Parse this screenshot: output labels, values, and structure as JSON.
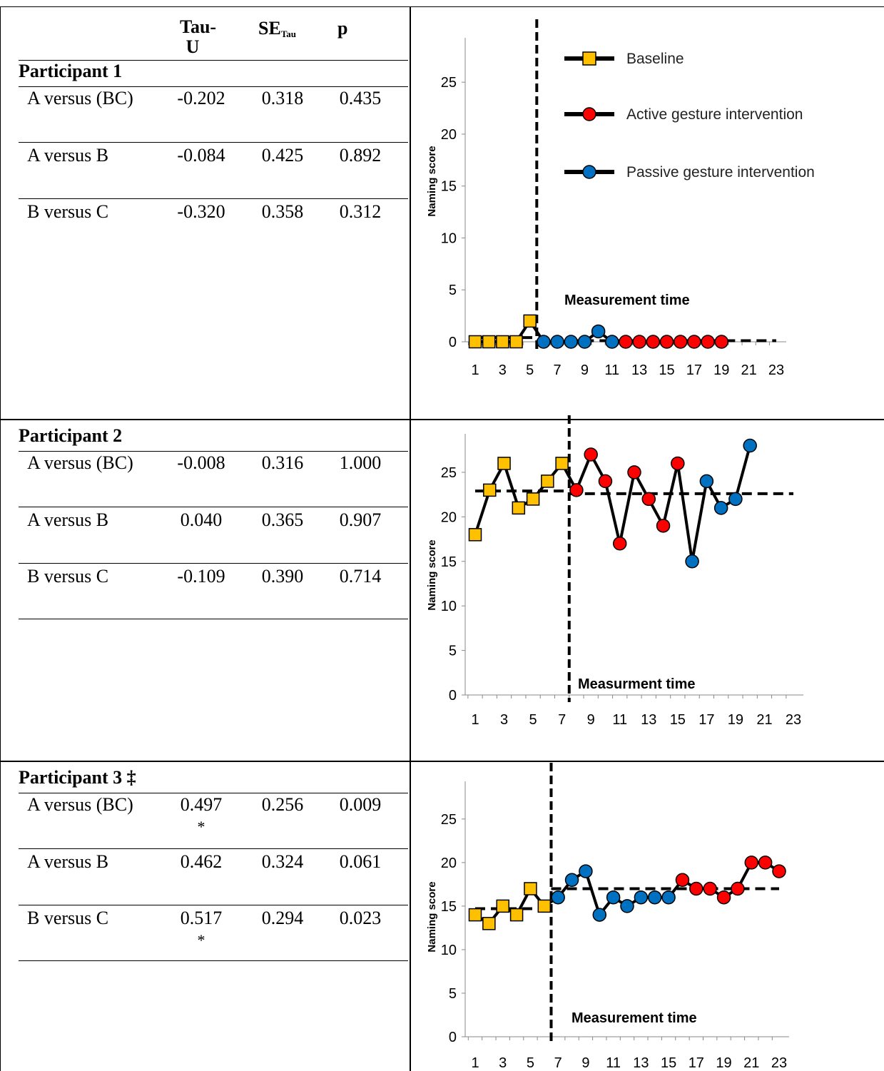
{
  "table": {
    "headers": [
      "",
      "Tau-U",
      "SE",
      "p"
    ],
    "se_sub": "Tau",
    "participants": [
      {
        "label": "Participant 1",
        "rows": [
          {
            "comparison": "A versus (BC)",
            "tau": "-0.202",
            "se": "0.318",
            "p": "0.435",
            "sig": ""
          },
          {
            "comparison": "A versus B",
            "tau": "-0.084",
            "se": "0.425",
            "p": "0.892",
            "sig": ""
          },
          {
            "comparison": "B versus C",
            "tau": "-0.320",
            "se": "0.358",
            "p": "0.312",
            "sig": ""
          }
        ]
      },
      {
        "label": "Participant 2",
        "rows": [
          {
            "comparison": "A versus (BC)",
            "tau": "-0.008",
            "se": "0.316",
            "p": "1.000",
            "sig": ""
          },
          {
            "comparison": "A versus B",
            "tau": "0.040",
            "se": "0.365",
            "p": "0.907",
            "sig": ""
          },
          {
            "comparison": "B versus C",
            "tau": "-0.109",
            "se": "0.390",
            "p": "0.714",
            "sig": ""
          }
        ]
      },
      {
        "label": "Participant 3 ‡",
        "rows": [
          {
            "comparison": "A versus (BC)",
            "tau": "0.497",
            "se": "0.256",
            "p": "0.009",
            "sig": "*"
          },
          {
            "comparison": "A versus B",
            "tau": "0.462",
            "se": "0.324",
            "p": "0.061",
            "sig": ""
          },
          {
            "comparison": "B versus C",
            "tau": "0.517",
            "se": "0.294",
            "p": "0.023",
            "sig": "*"
          }
        ]
      }
    ]
  },
  "colors": {
    "baseline": "#FFC000",
    "active": "#FF0000",
    "passive": "#0070C0",
    "line": "#000000"
  },
  "chart_data": [
    {
      "type": "line",
      "ylabel": "Naming score",
      "xlabel": "Measurement time",
      "ylim": [
        0,
        29
      ],
      "yticks": [
        0,
        5,
        10,
        15,
        20,
        25
      ],
      "xlim": [
        1,
        23
      ],
      "xticks": [
        1,
        3,
        5,
        7,
        9,
        11,
        13,
        15,
        17,
        19,
        21,
        23
      ],
      "phase_change_x": 5.5,
      "legend": [
        "Baseline",
        "Active gesture intervention",
        "Passive gesture intervention"
      ],
      "points": [
        {
          "x": 1,
          "y": 0,
          "phase": "baseline"
        },
        {
          "x": 2,
          "y": 0,
          "phase": "baseline"
        },
        {
          "x": 3,
          "y": 0,
          "phase": "baseline"
        },
        {
          "x": 4,
          "y": 0,
          "phase": "baseline"
        },
        {
          "x": 5,
          "y": 2,
          "phase": "baseline"
        },
        {
          "x": 6,
          "y": 0,
          "phase": "passive"
        },
        {
          "x": 7,
          "y": 0,
          "phase": "passive"
        },
        {
          "x": 8,
          "y": 0,
          "phase": "passive"
        },
        {
          "x": 9,
          "y": 0,
          "phase": "passive"
        },
        {
          "x": 10,
          "y": 1,
          "phase": "passive"
        },
        {
          "x": 11,
          "y": 0,
          "phase": "passive"
        },
        {
          "x": 12,
          "y": 0,
          "phase": "active"
        },
        {
          "x": 13,
          "y": 0,
          "phase": "active"
        },
        {
          "x": 14,
          "y": 0,
          "phase": "active"
        },
        {
          "x": 15,
          "y": 0,
          "phase": "active"
        },
        {
          "x": 16,
          "y": 0,
          "phase": "active"
        },
        {
          "x": 17,
          "y": 0,
          "phase": "active"
        },
        {
          "x": 18,
          "y": 0,
          "phase": "active"
        },
        {
          "x": 19,
          "y": 0,
          "phase": "active"
        }
      ],
      "mean_lines": [
        {
          "x_start": 1,
          "x_end": 5.5,
          "y": 0.4
        },
        {
          "x_start": 5.5,
          "x_end": 23,
          "y": 0.1
        }
      ]
    },
    {
      "type": "line",
      "ylabel": "Naming score",
      "xlabel": "Measurment time",
      "ylim": [
        0,
        29
      ],
      "yticks": [
        0,
        5,
        10,
        15,
        20,
        25
      ],
      "xlim": [
        1,
        23
      ],
      "xticks": [
        1,
        3,
        5,
        7,
        9,
        11,
        13,
        15,
        17,
        19,
        21,
        23
      ],
      "phase_change_x": 7.5,
      "legend": [],
      "points": [
        {
          "x": 1,
          "y": 18,
          "phase": "baseline"
        },
        {
          "x": 2,
          "y": 23,
          "phase": "baseline"
        },
        {
          "x": 3,
          "y": 26,
          "phase": "baseline"
        },
        {
          "x": 4,
          "y": 21,
          "phase": "baseline"
        },
        {
          "x": 5,
          "y": 22,
          "phase": "baseline"
        },
        {
          "x": 6,
          "y": 24,
          "phase": "baseline"
        },
        {
          "x": 7,
          "y": 26,
          "phase": "baseline"
        },
        {
          "x": 8,
          "y": 23,
          "phase": "active"
        },
        {
          "x": 9,
          "y": 27,
          "phase": "active"
        },
        {
          "x": 10,
          "y": 24,
          "phase": "active"
        },
        {
          "x": 11,
          "y": 17,
          "phase": "active"
        },
        {
          "x": 12,
          "y": 25,
          "phase": "active"
        },
        {
          "x": 13,
          "y": 22,
          "phase": "active"
        },
        {
          "x": 14,
          "y": 19,
          "phase": "active"
        },
        {
          "x": 15,
          "y": 26,
          "phase": "active"
        },
        {
          "x": 16,
          "y": 15,
          "phase": "passive"
        },
        {
          "x": 17,
          "y": 24,
          "phase": "passive"
        },
        {
          "x": 18,
          "y": 21,
          "phase": "passive"
        },
        {
          "x": 19,
          "y": 22,
          "phase": "passive"
        },
        {
          "x": 20,
          "y": 28,
          "phase": "passive"
        }
      ],
      "mean_lines": [
        {
          "x_start": 1,
          "x_end": 7.5,
          "y": 22.9
        },
        {
          "x_start": 7.5,
          "x_end": 23,
          "y": 22.6
        }
      ]
    },
    {
      "type": "line",
      "ylabel": "Naming score",
      "xlabel": "Measurement time",
      "ylim": [
        0,
        29
      ],
      "yticks": [
        0,
        5,
        10,
        15,
        20,
        25
      ],
      "xlim": [
        1,
        23
      ],
      "xticks": [
        1,
        3,
        5,
        7,
        9,
        11,
        13,
        15,
        17,
        19,
        21,
        23
      ],
      "phase_change_x": 6.5,
      "legend": [],
      "points": [
        {
          "x": 1,
          "y": 14,
          "phase": "baseline"
        },
        {
          "x": 2,
          "y": 13,
          "phase": "baseline"
        },
        {
          "x": 3,
          "y": 15,
          "phase": "baseline"
        },
        {
          "x": 4,
          "y": 14,
          "phase": "baseline"
        },
        {
          "x": 5,
          "y": 17,
          "phase": "baseline"
        },
        {
          "x": 6,
          "y": 15,
          "phase": "baseline"
        },
        {
          "x": 7,
          "y": 16,
          "phase": "passive"
        },
        {
          "x": 8,
          "y": 18,
          "phase": "passive"
        },
        {
          "x": 9,
          "y": 19,
          "phase": "passive"
        },
        {
          "x": 10,
          "y": 14,
          "phase": "passive"
        },
        {
          "x": 11,
          "y": 16,
          "phase": "passive"
        },
        {
          "x": 12,
          "y": 15,
          "phase": "passive"
        },
        {
          "x": 13,
          "y": 16,
          "phase": "passive"
        },
        {
          "x": 14,
          "y": 16,
          "phase": "passive"
        },
        {
          "x": 15,
          "y": 16,
          "phase": "passive"
        },
        {
          "x": 16,
          "y": 18,
          "phase": "active"
        },
        {
          "x": 17,
          "y": 17,
          "phase": "active"
        },
        {
          "x": 18,
          "y": 17,
          "phase": "active"
        },
        {
          "x": 19,
          "y": 16,
          "phase": "active"
        },
        {
          "x": 20,
          "y": 17,
          "phase": "active"
        },
        {
          "x": 21,
          "y": 20,
          "phase": "active"
        },
        {
          "x": 22,
          "y": 20,
          "phase": "active"
        },
        {
          "x": 23,
          "y": 19,
          "phase": "active"
        }
      ],
      "mean_lines": [
        {
          "x_start": 1,
          "x_end": 6.5,
          "y": 14.7
        },
        {
          "x_start": 6.5,
          "x_end": 23,
          "y": 17
        }
      ]
    }
  ]
}
